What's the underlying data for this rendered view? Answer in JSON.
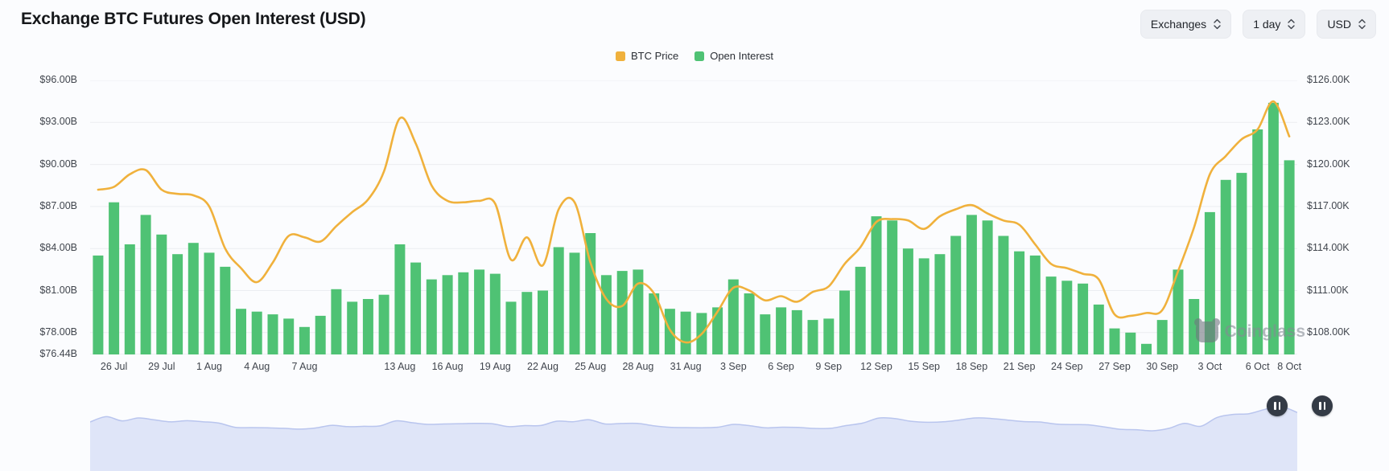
{
  "page": {
    "background": "#fbfcfe"
  },
  "header": {
    "title": "Exchange BTC Futures Open Interest (USD)",
    "controls": [
      {
        "label": "Exchanges"
      },
      {
        "label": "1 day"
      },
      {
        "label": "USD"
      }
    ]
  },
  "watermark": {
    "label": "Coinglass"
  },
  "chart_data": {
    "type": "bar+line",
    "title": "Exchange BTC Futures Open Interest (USD)",
    "legend_position": "top-center",
    "grid": "horizontal",
    "legend": [
      {
        "name": "BTC Price",
        "color": "#F0B13C",
        "type": "line",
        "axis": "right"
      },
      {
        "name": "Open Interest",
        "color": "#4FC274",
        "type": "bar",
        "axis": "left"
      }
    ],
    "left_axis": {
      "series": "Open Interest",
      "unit": "USD billions",
      "min": 76.44,
      "max": 96,
      "ticks": [
        {
          "label": "$96.00B",
          "value": 96
        },
        {
          "label": "$93.00B",
          "value": 93
        },
        {
          "label": "$90.00B",
          "value": 90
        },
        {
          "label": "$87.00B",
          "value": 87
        },
        {
          "label": "$84.00B",
          "value": 84
        },
        {
          "label": "$81.00B",
          "value": 81
        },
        {
          "label": "$78.00B",
          "value": 78
        },
        {
          "label": "$76.44B",
          "value": 76.44
        }
      ]
    },
    "right_axis": {
      "series": "BTC Price",
      "unit": "USD thousands",
      "min": 106.44,
      "max": 126,
      "ticks": [
        {
          "label": "$126.00K",
          "value": 126
        },
        {
          "label": "$123.00K",
          "value": 123
        },
        {
          "label": "$120.00K",
          "value": 120
        },
        {
          "label": "$117.00K",
          "value": 117
        },
        {
          "label": "$114.00K",
          "value": 114
        },
        {
          "label": "$111.00K",
          "value": 111
        },
        {
          "label": "$108.00K",
          "value": 108
        }
      ]
    },
    "x_ticks": [
      {
        "label": "26 Jul",
        "index": 1
      },
      {
        "label": "29 Jul",
        "index": 4
      },
      {
        "label": "1 Aug",
        "index": 7
      },
      {
        "label": "4 Aug",
        "index": 10
      },
      {
        "label": "7 Aug",
        "index": 13
      },
      {
        "label": "13 Aug",
        "index": 19
      },
      {
        "label": "16 Aug",
        "index": 22
      },
      {
        "label": "19 Aug",
        "index": 25
      },
      {
        "label": "22 Aug",
        "index": 28
      },
      {
        "label": "25 Aug",
        "index": 31
      },
      {
        "label": "28 Aug",
        "index": 34
      },
      {
        "label": "31 Aug",
        "index": 37
      },
      {
        "label": "3 Sep",
        "index": 40
      },
      {
        "label": "6 Sep",
        "index": 43
      },
      {
        "label": "9 Sep",
        "index": 46
      },
      {
        "label": "12 Sep",
        "index": 49
      },
      {
        "label": "15 Sep",
        "index": 52
      },
      {
        "label": "18 Sep",
        "index": 55
      },
      {
        "label": "21 Sep",
        "index": 58
      },
      {
        "label": "24 Sep",
        "index": 61
      },
      {
        "label": "27 Sep",
        "index": 64
      },
      {
        "label": "30 Sep",
        "index": 67
      },
      {
        "label": "3 Oct",
        "index": 70
      },
      {
        "label": "6 Oct",
        "index": 73
      },
      {
        "label": "8 Oct",
        "index": 75
      }
    ],
    "series": [
      {
        "name": "BTC Price",
        "type": "line",
        "axis": "right",
        "unit": "$K",
        "values": [
          118.2,
          118.4,
          119.3,
          119.6,
          118.2,
          117.9,
          117.8,
          117.0,
          114.0,
          112.6,
          111.6,
          113.0,
          114.9,
          114.8,
          114.5,
          115.6,
          116.6,
          117.5,
          119.5,
          123.3,
          121.5,
          118.5,
          117.4,
          117.3,
          117.4,
          117.2,
          113.2,
          114.8,
          112.8,
          116.8,
          117.3,
          113.0,
          110.4,
          109.9,
          111.5,
          110.8,
          108.2,
          107.3,
          107.9,
          109.5,
          111.2,
          111.0,
          110.3,
          110.6,
          110.2,
          110.9,
          111.3,
          112.9,
          114.1,
          115.9,
          116.1,
          116.0,
          115.4,
          116.3,
          116.8,
          117.1,
          116.5,
          116.0,
          115.7,
          114.3,
          112.9,
          112.6,
          112.2,
          111.8,
          109.3,
          109.2,
          109.4,
          109.6,
          112.4,
          115.5,
          119.3,
          120.6,
          121.8,
          122.5,
          124.5,
          122.0
        ]
      },
      {
        "name": "Open Interest",
        "type": "bar",
        "axis": "left",
        "unit": "$B",
        "values": [
          83.5,
          87.3,
          84.3,
          86.4,
          85.0,
          83.6,
          84.4,
          83.7,
          82.7,
          79.7,
          79.5,
          79.3,
          79.0,
          78.4,
          79.2,
          81.1,
          80.2,
          80.4,
          80.7,
          84.3,
          83.0,
          81.8,
          82.1,
          82.3,
          82.5,
          82.2,
          80.2,
          80.9,
          81.0,
          84.1,
          83.7,
          85.1,
          82.1,
          82.4,
          82.5,
          80.8,
          79.7,
          79.5,
          79.4,
          79.8,
          81.8,
          80.8,
          79.3,
          79.8,
          79.6,
          78.9,
          79.0,
          81.0,
          82.7,
          86.3,
          86.0,
          84.0,
          83.3,
          83.6,
          84.9,
          86.4,
          86.0,
          84.9,
          83.8,
          83.5,
          82.0,
          81.7,
          81.5,
          80.0,
          78.3,
          78.0,
          77.2,
          78.9,
          82.5,
          80.4,
          86.6,
          88.9,
          89.4,
          92.5,
          94.4,
          90.3
        ]
      }
    ],
    "colors": {
      "grid": "#ebedf1",
      "axis_line": "#e2e5ea",
      "navigator_fill": "#dfe5f8",
      "navigator_stroke": "#b9c5ee",
      "handle": "#343b46"
    }
  },
  "navigator": {
    "handle_icon": "pause"
  }
}
